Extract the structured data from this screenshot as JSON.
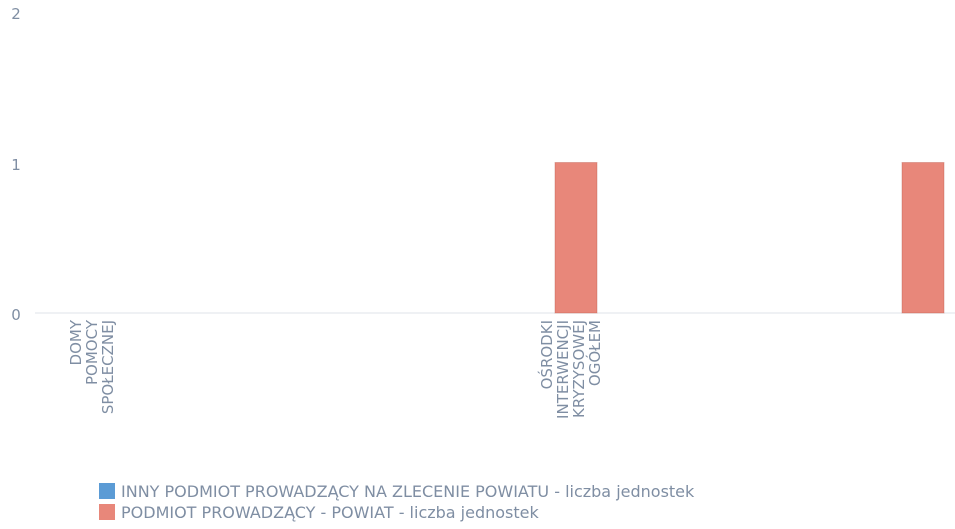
{
  "chart_data": {
    "type": "bar",
    "categories": [
      [
        "DOMY",
        "POMOCY",
        "SPOŁECZNEJ"
      ],
      [
        "OŚRODKI",
        "INTERWENCJI",
        "KRYZYSOWEJ",
        "OGÓŁEM"
      ],
      []
    ],
    "series": [
      {
        "name": "INNY PODMIOT PROWADZĄCY NA ZLECENIE POWIATU - liczba jednostek",
        "color": "#5b9bd5",
        "values": [
          0,
          0,
          0
        ]
      },
      {
        "name": "PODMIOT PROWADZĄCY - POWIAT - liczba jednostek",
        "color": "#e8877a",
        "values": [
          0,
          1,
          1
        ]
      }
    ],
    "ylim": [
      0,
      2
    ],
    "yticks": [
      "0",
      "1",
      "2"
    ],
    "grid": false,
    "legend_position": "bottom-left"
  }
}
